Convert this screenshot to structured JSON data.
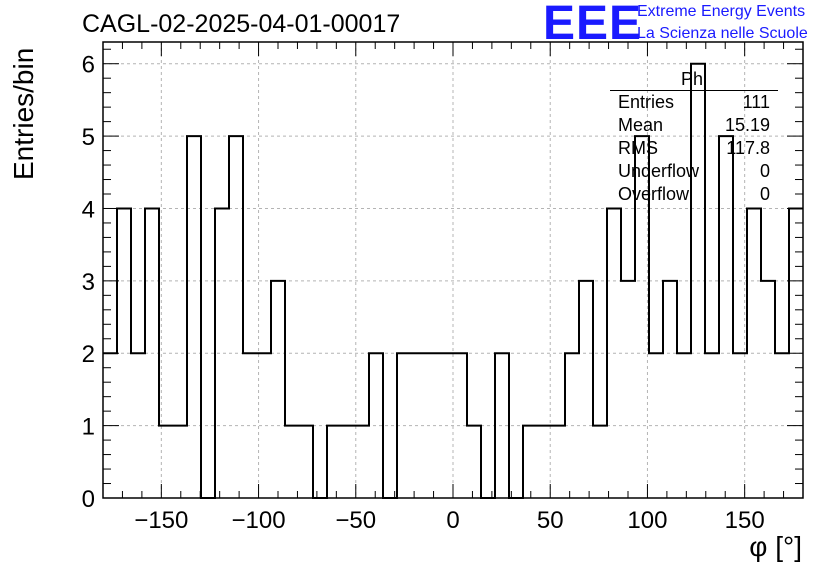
{
  "header": {
    "title": "CAGL-02-2025-04-01-00017",
    "logo_text": "EEE",
    "logo_line1": "Extreme Energy Events",
    "logo_line2": "La Scienza nelle Scuole",
    "logo_color": "#1a1aff"
  },
  "stats_box": {
    "title": "Phi",
    "rows": [
      {
        "label": "Entries",
        "value": "111"
      },
      {
        "label": "Mean",
        "value": "15.19"
      },
      {
        "label": "RMS",
        "value": "117.8"
      },
      {
        "label": "Underflow",
        "value": "0"
      },
      {
        "label": "Overflow",
        "value": "0"
      }
    ]
  },
  "chart_data": {
    "type": "histogram",
    "title": "CAGL-02-2025-04-01-00017",
    "xlabel": "φ [°]",
    "ylabel": "Entries/bin",
    "xlim": [
      -180,
      180
    ],
    "ylim": [
      0,
      6.3
    ],
    "bin_width": 7.2,
    "x_ticks": [
      -150,
      -100,
      -50,
      0,
      50,
      100,
      150
    ],
    "x_tick_labels": [
      "−150",
      "−100",
      "−50",
      "0",
      "50",
      "100",
      "150"
    ],
    "y_ticks": [
      0,
      1,
      2,
      3,
      4,
      5,
      6
    ],
    "y_tick_labels": [
      "0",
      "1",
      "2",
      "3",
      "4",
      "5",
      "6"
    ],
    "grid": true,
    "line_color": "#000000",
    "bin_edges_start": -180,
    "values": [
      2,
      4,
      2,
      4,
      1,
      1,
      5,
      0,
      4,
      5,
      2,
      2,
      3,
      1,
      1,
      0,
      1,
      1,
      1,
      2,
      0,
      2,
      2,
      2,
      2,
      2,
      1,
      0,
      2,
      0,
      1,
      1,
      1,
      2,
      3,
      1,
      4,
      3,
      5,
      2,
      3,
      2,
      6,
      2,
      5,
      2,
      4,
      3,
      2,
      4
    ]
  }
}
